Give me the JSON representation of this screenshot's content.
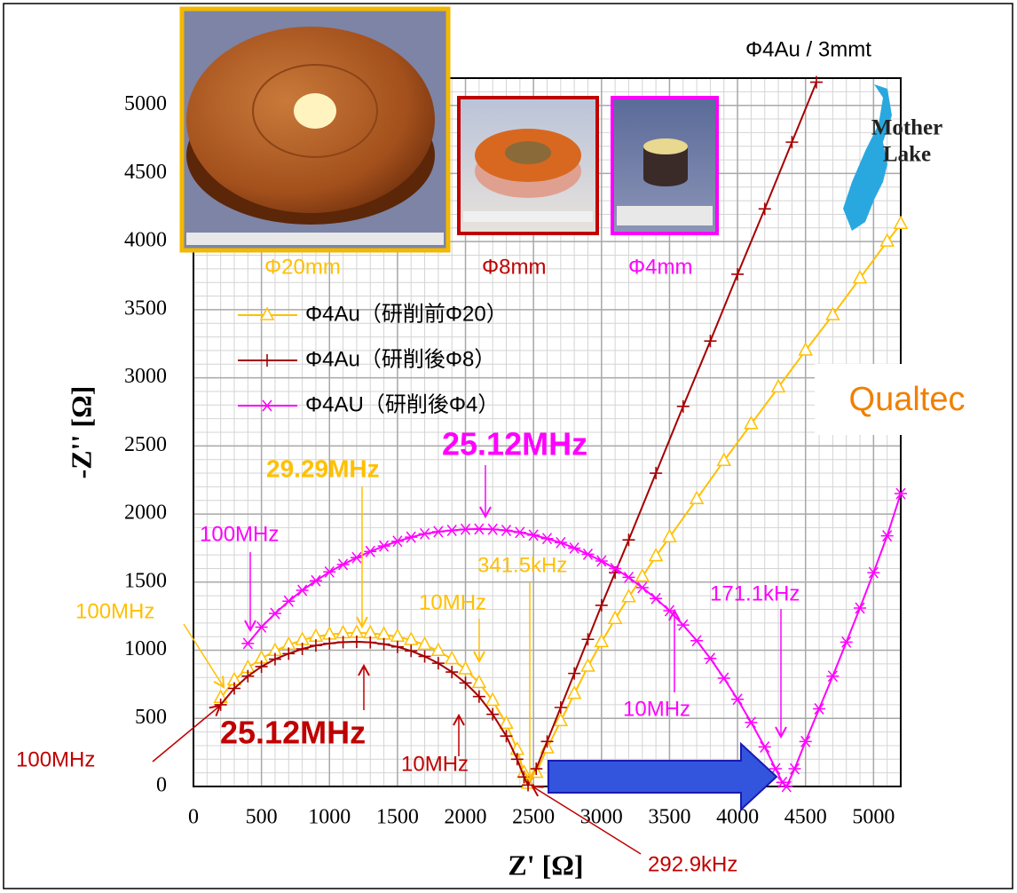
{
  "chart_data": {
    "type": "line",
    "xlabel": "Z' [Ω]",
    "ylabel": "-Z'' [Ω]",
    "xlim": [
      0,
      5200
    ],
    "ylim": [
      0,
      5200
    ],
    "xticks": [
      0,
      500,
      1000,
      1500,
      2000,
      2500,
      3000,
      3500,
      4000,
      4500,
      5000
    ],
    "yticks": [
      0,
      500,
      1000,
      1500,
      2000,
      2500,
      3000,
      3500,
      4000,
      4500,
      5000
    ],
    "grid": true,
    "legend": "upper left",
    "series": [
      {
        "name": "Φ4Au（研削前Φ20）",
        "color": "#ffc000",
        "marker": "triangle",
        "x": [
          200,
          300,
          400,
          500,
          600,
          700,
          800,
          900,
          1000,
          1100,
          1200,
          1300,
          1400,
          1500,
          1600,
          1700,
          1800,
          1900,
          2000,
          2100,
          2200,
          2300,
          2380,
          2430,
          2460,
          2520,
          2600,
          2700,
          2800,
          2900,
          3000,
          3100,
          3200,
          3300,
          3400,
          3500,
          3700,
          3900,
          4100,
          4300,
          4500,
          4700,
          4900,
          5100,
          5200
        ],
        "values": [
          650,
          780,
          870,
          940,
          995,
          1040,
          1075,
          1100,
          1115,
          1125,
          1128,
          1125,
          1115,
          1100,
          1075,
          1040,
          995,
          935,
          860,
          760,
          630,
          460,
          270,
          100,
          20,
          100,
          280,
          480,
          680,
          880,
          1060,
          1230,
          1390,
          1540,
          1690,
          1830,
          2110,
          2390,
          2660,
          2930,
          3200,
          3460,
          3730,
          4000,
          4130
        ]
      },
      {
        "name": "Φ4Au（研削後Φ8）",
        "color": "#a50000",
        "marker": "plus",
        "x": [
          200,
          300,
          400,
          500,
          600,
          700,
          800,
          900,
          1000,
          1100,
          1200,
          1300,
          1400,
          1500,
          1600,
          1700,
          1800,
          1900,
          2000,
          2100,
          2200,
          2300,
          2380,
          2430,
          2460,
          2520,
          2600,
          2700,
          2800,
          2900,
          3000,
          3100,
          3200,
          3400,
          3600,
          3800,
          4000,
          4200,
          4400,
          4580
        ],
        "values": [
          600,
          720,
          810,
          880,
          935,
          975,
          1010,
          1035,
          1050,
          1060,
          1062,
          1058,
          1045,
          1025,
          995,
          955,
          905,
          840,
          760,
          660,
          530,
          370,
          200,
          70,
          10,
          130,
          330,
          580,
          830,
          1080,
          1330,
          1570,
          1810,
          2300,
          2790,
          3270,
          3760,
          4240,
          4730,
          5170
        ]
      },
      {
        "name": "Φ4AU（研削後Φ4）",
        "color": "#ff00ff",
        "marker": "asterisk",
        "x": [
          400,
          500,
          600,
          700,
          800,
          900,
          1000,
          1100,
          1200,
          1300,
          1400,
          1500,
          1600,
          1700,
          1800,
          1900,
          2000,
          2100,
          2200,
          2300,
          2400,
          2500,
          2600,
          2700,
          2800,
          2900,
          3000,
          3100,
          3200,
          3300,
          3400,
          3500,
          3600,
          3700,
          3800,
          3900,
          4000,
          4100,
          4200,
          4280,
          4330,
          4360,
          4420,
          4500,
          4600,
          4700,
          4800,
          4900,
          5000,
          5100,
          5200
        ],
        "values": [
          1050,
          1170,
          1270,
          1360,
          1440,
          1510,
          1575,
          1630,
          1680,
          1725,
          1765,
          1800,
          1830,
          1855,
          1870,
          1880,
          1888,
          1890,
          1888,
          1880,
          1865,
          1845,
          1820,
          1790,
          1750,
          1705,
          1655,
          1600,
          1535,
          1460,
          1380,
          1290,
          1185,
          1070,
          940,
          795,
          640,
          470,
          290,
          130,
          30,
          0,
          130,
          330,
          570,
          810,
          1060,
          1310,
          1570,
          1840,
          2150
        ]
      }
    ],
    "annotations": [
      {
        "text": "Φ4Au / 3mmt",
        "color": "#000000"
      },
      {
        "text": "Φ20mm",
        "color": "#ffc000"
      },
      {
        "text": "Φ8mm",
        "color": "#c00000"
      },
      {
        "text": "Φ4mm",
        "color": "#ff00ff"
      },
      {
        "text": "25.12MHz",
        "color": "#ff00ff"
      },
      {
        "text": "29.29MHz",
        "color": "#ffc000"
      },
      {
        "text": "100MHz",
        "color": "#ff00ff"
      },
      {
        "text": "341.5kHz",
        "color": "#ffc000"
      },
      {
        "text": "100MHz",
        "color": "#ffc000"
      },
      {
        "text": "10MHz",
        "color": "#ffc000"
      },
      {
        "text": "171.1kHz",
        "color": "#ff00ff"
      },
      {
        "text": "10MHz",
        "color": "#ff00ff"
      },
      {
        "text": "25.12MHz",
        "color": "#c00000"
      },
      {
        "text": "100MHz",
        "color": "#c00000"
      },
      {
        "text": "10MHz",
        "color": "#c00000"
      },
      {
        "text": "292.9kHz",
        "color": "#c00000"
      }
    ]
  },
  "logos": {
    "mother_lake": [
      "Mother",
      "Lake"
    ],
    "qualtec": "Qualtec"
  }
}
